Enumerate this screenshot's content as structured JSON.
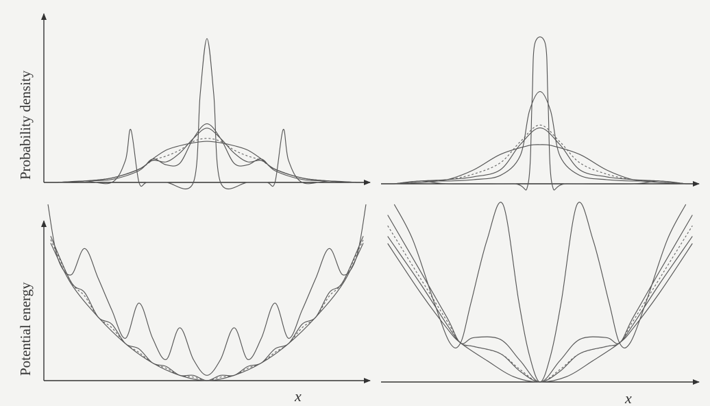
{
  "labels": {
    "density_ylabel": "Probability density",
    "energy_ylabel": "Potential energy",
    "x_label": "x"
  },
  "chart_data": [
    {
      "type": "line",
      "panel": "top-left",
      "ylabel": "Probability density",
      "xlim": [
        -6,
        6
      ],
      "ylim": [
        0,
        1.0
      ],
      "grid": false,
      "series": [
        {
          "style": "solid",
          "x": [
            -5.5,
            -4.5,
            -3.5,
            -2.5,
            -2.0,
            -1.5,
            -1.0,
            -0.5,
            0,
            0.5,
            1.0,
            1.5,
            2.0,
            2.5,
            3.5,
            4.5,
            5.5
          ],
          "y": [
            0.0,
            0.01,
            0.03,
            0.09,
            0.16,
            0.22,
            0.25,
            0.27,
            0.28,
            0.27,
            0.25,
            0.22,
            0.16,
            0.09,
            0.03,
            0.01,
            0.0
          ]
        },
        {
          "style": "dashed",
          "x": [
            -5.5,
            -4.5,
            -3.5,
            -2.5,
            -2.0,
            -1.5,
            -1.0,
            -0.5,
            0,
            0.5,
            1.0,
            1.5,
            2.0,
            2.5,
            3.5,
            4.5,
            5.5
          ],
          "y": [
            0.0,
            0.01,
            0.03,
            0.09,
            0.15,
            0.18,
            0.22,
            0.28,
            0.3,
            0.28,
            0.22,
            0.18,
            0.15,
            0.09,
            0.03,
            0.01,
            0.0
          ]
        },
        {
          "style": "solid",
          "x": [
            -5.5,
            -4.5,
            -3.5,
            -2.5,
            -2.0,
            -1.5,
            -1.0,
            -0.5,
            0,
            0.5,
            1.0,
            1.5,
            2.0,
            2.5,
            3.5,
            4.5,
            5.5
          ],
          "y": [
            0.0,
            0.01,
            0.03,
            0.09,
            0.15,
            0.14,
            0.2,
            0.3,
            0.37,
            0.3,
            0.2,
            0.14,
            0.15,
            0.09,
            0.03,
            0.01,
            0.0
          ]
        },
        {
          "style": "solid",
          "x": [
            -5.5,
            -4.5,
            -3.5,
            -2.5,
            -2.0,
            -1.5,
            -1.0,
            -0.5,
            0,
            0.5,
            1.0,
            1.5,
            2.0,
            2.5,
            3.5,
            4.5,
            5.5
          ],
          "y": [
            0.0,
            0.01,
            0.02,
            0.08,
            0.16,
            0.12,
            0.13,
            0.3,
            0.4,
            0.3,
            0.13,
            0.12,
            0.16,
            0.08,
            0.02,
            0.01,
            0.0
          ]
        },
        {
          "style": "solid",
          "x": [
            -5.5,
            -4.5,
            -3.5,
            -3.0,
            -2.8,
            -2.5,
            -2.2,
            -1.5,
            -0.5,
            -0.25,
            0,
            0.25,
            0.5,
            1.5,
            2.2,
            2.5,
            2.8,
            3.0,
            3.5,
            4.5,
            5.5
          ],
          "y": [
            0.0,
            0.01,
            0.0,
            0.15,
            0.36,
            0.0,
            0.0,
            0.0,
            0.0,
            0.6,
            0.98,
            0.6,
            0.0,
            0.0,
            0.0,
            0.0,
            0.36,
            0.15,
            0.0,
            0.01,
            0.0
          ]
        }
      ]
    },
    {
      "type": "line",
      "panel": "top-right",
      "xlim": [
        -6,
        6
      ],
      "ylim": [
        0,
        1.0
      ],
      "grid": false,
      "series": [
        {
          "style": "solid",
          "x": [
            -5.5,
            -4.5,
            -3.5,
            -2.5,
            -1.5,
            -0.5,
            0,
            0.5,
            1.5,
            2.5,
            3.5,
            4.5,
            5.5
          ],
          "y": [
            0.0,
            0.01,
            0.03,
            0.1,
            0.21,
            0.27,
            0.28,
            0.27,
            0.21,
            0.1,
            0.03,
            0.01,
            0.0
          ]
        },
        {
          "style": "dashed",
          "x": [
            -5.5,
            -4.5,
            -3.5,
            -2.5,
            -1.5,
            -0.75,
            0,
            0.75,
            1.5,
            2.5,
            3.5,
            4.5,
            5.5
          ],
          "y": [
            0.0,
            0.02,
            0.03,
            0.07,
            0.15,
            0.3,
            0.42,
            0.3,
            0.15,
            0.07,
            0.03,
            0.02,
            0.0
          ]
        },
        {
          "style": "solid",
          "x": [
            -5.5,
            -4.5,
            -3.5,
            -2.5,
            -1.5,
            -0.75,
            0,
            0.75,
            1.5,
            2.5,
            3.5,
            4.5,
            5.5
          ],
          "y": [
            0.0,
            0.02,
            0.03,
            0.05,
            0.1,
            0.28,
            0.4,
            0.28,
            0.1,
            0.05,
            0.03,
            0.02,
            0.0
          ]
        },
        {
          "style": "solid",
          "x": [
            -5.5,
            -4.5,
            -3.5,
            -2.5,
            -1.5,
            -0.75,
            -0.4,
            0,
            0.4,
            0.75,
            1.5,
            2.5,
            3.5,
            4.5,
            5.5
          ],
          "y": [
            0.0,
            0.02,
            0.02,
            0.03,
            0.06,
            0.2,
            0.52,
            0.66,
            0.52,
            0.2,
            0.06,
            0.03,
            0.02,
            0.02,
            0.0
          ]
        },
        {
          "style": "solid",
          "x": [
            -5.5,
            -4.5,
            -3.5,
            -1.0,
            -0.45,
            -0.3,
            -0.2,
            0.2,
            0.3,
            0.45,
            1.0,
            3.5,
            4.5,
            5.5
          ],
          "y": [
            0.0,
            0.02,
            0.0,
            0.0,
            0.0,
            0.6,
            1.0,
            1.0,
            0.6,
            0.0,
            0.0,
            0.0,
            0.02,
            0.0
          ]
        }
      ]
    },
    {
      "type": "line",
      "panel": "bottom-left",
      "ylabel": "Potential energy",
      "xlabel": "x",
      "xlim": [
        -6,
        6
      ],
      "ylim": [
        0,
        1.0
      ],
      "grid": false,
      "series": [
        {
          "style": "solid",
          "x": [
            -5.75,
            -5.0,
            -4.0,
            -3.0,
            -2.0,
            -1.0,
            0,
            1.0,
            2.0,
            3.0,
            4.0,
            5.0,
            5.75
          ],
          "y": [
            0.78,
            0.55,
            0.36,
            0.21,
            0.1,
            0.03,
            0.0,
            0.03,
            0.1,
            0.21,
            0.36,
            0.55,
            0.78
          ]
        },
        {
          "style": "dashed",
          "x": [
            -5.75,
            -5.0,
            -4.5,
            -4.0,
            -3.5,
            -3.0,
            -2.5,
            -2.0,
            -1.5,
            -1.0,
            -0.5,
            0,
            0.5,
            1.0,
            1.5,
            2.0,
            2.5,
            3.0,
            3.5,
            4.0,
            4.5,
            5.0,
            5.75
          ],
          "y": [
            0.8,
            0.56,
            0.48,
            0.36,
            0.3,
            0.21,
            0.16,
            0.1,
            0.07,
            0.03,
            0.02,
            0.0,
            0.02,
            0.03,
            0.07,
            0.1,
            0.16,
            0.21,
            0.3,
            0.36,
            0.48,
            0.56,
            0.8
          ]
        },
        {
          "style": "solid",
          "x": [
            -5.75,
            -5.0,
            -4.5,
            -4.0,
            -3.5,
            -3.0,
            -2.5,
            -2.0,
            -1.5,
            -1.0,
            -0.5,
            0,
            0.5,
            1.0,
            1.5,
            2.0,
            2.5,
            3.0,
            3.5,
            4.0,
            4.5,
            5.0,
            5.75
          ],
          "y": [
            0.82,
            0.56,
            0.5,
            0.36,
            0.32,
            0.21,
            0.18,
            0.1,
            0.08,
            0.03,
            0.03,
            0.0,
            0.03,
            0.03,
            0.08,
            0.1,
            0.18,
            0.21,
            0.32,
            0.36,
            0.5,
            0.56,
            0.82
          ]
        },
        {
          "style": "solid",
          "x": [
            -5.85,
            -5.5,
            -5.0,
            -4.5,
            -4.0,
            -3.5,
            -3.0,
            -2.5,
            -2.0,
            -1.5,
            -1.0,
            -0.5,
            0,
            0.5,
            1.0,
            1.5,
            2.0,
            2.5,
            3.0,
            3.5,
            4.0,
            4.5,
            5.0,
            5.5,
            5.85
          ],
          "y": [
            1.0,
            0.7,
            0.6,
            0.75,
            0.58,
            0.4,
            0.24,
            0.44,
            0.24,
            0.12,
            0.3,
            0.12,
            0.03,
            0.12,
            0.3,
            0.12,
            0.24,
            0.44,
            0.24,
            0.4,
            0.58,
            0.75,
            0.6,
            0.7,
            1.0
          ]
        }
      ]
    },
    {
      "type": "line",
      "panel": "bottom-right",
      "xlabel": "x",
      "xlim": [
        -6,
        6
      ],
      "ylim": [
        0,
        1.0
      ],
      "grid": false,
      "series": [
        {
          "style": "solid",
          "x": [
            -5.75,
            -4.5,
            -3.5,
            -3.0,
            -2.0,
            -1.0,
            0,
            1.0,
            2.0,
            3.0,
            3.5,
            4.5,
            5.75
          ],
          "y": [
            0.78,
            0.5,
            0.3,
            0.22,
            0.12,
            0.03,
            0.0,
            0.03,
            0.12,
            0.22,
            0.3,
            0.5,
            0.78
          ]
        },
        {
          "style": "solid",
          "x": [
            -5.75,
            -4.5,
            -3.5,
            -3.0,
            -2.5,
            -1.5,
            -0.75,
            0,
            0.75,
            1.5,
            2.5,
            3.0,
            3.5,
            4.5,
            5.75
          ],
          "y": [
            0.82,
            0.55,
            0.32,
            0.22,
            0.2,
            0.16,
            0.06,
            0.0,
            0.06,
            0.16,
            0.2,
            0.22,
            0.32,
            0.55,
            0.82
          ]
        },
        {
          "style": "dashed",
          "x": [
            -5.75,
            -4.5,
            -3.5,
            -3.0,
            -2.5,
            -1.5,
            -0.75,
            0,
            0.75,
            1.5,
            2.5,
            3.0,
            3.5,
            4.5,
            5.75
          ],
          "y": [
            0.88,
            0.58,
            0.34,
            0.22,
            0.2,
            0.16,
            0.07,
            0.0,
            0.07,
            0.16,
            0.2,
            0.22,
            0.34,
            0.58,
            0.88
          ]
        },
        {
          "style": "solid",
          "x": [
            -5.75,
            -4.5,
            -3.5,
            -3.0,
            -2.5,
            -1.5,
            -0.75,
            0,
            0.75,
            1.5,
            2.5,
            3.0,
            3.5,
            4.5,
            5.75
          ],
          "y": [
            0.94,
            0.62,
            0.36,
            0.22,
            0.25,
            0.24,
            0.12,
            0.0,
            0.12,
            0.24,
            0.25,
            0.22,
            0.36,
            0.62,
            0.94
          ]
        },
        {
          "style": "solid",
          "x": [
            -5.5,
            -4.8,
            -4.0,
            -3.4,
            -3.0,
            -2.6,
            -2.0,
            -1.4,
            -0.8,
            -0.4,
            0,
            0.4,
            0.8,
            1.4,
            2.0,
            2.6,
            3.0,
            3.4,
            4.0,
            4.8,
            5.5
          ],
          "y": [
            1.0,
            0.8,
            0.45,
            0.22,
            0.22,
            0.45,
            0.8,
            1.0,
            0.45,
            0.15,
            0.0,
            0.15,
            0.45,
            1.0,
            0.8,
            0.45,
            0.22,
            0.22,
            0.45,
            0.8,
            1.0
          ]
        }
      ]
    }
  ]
}
